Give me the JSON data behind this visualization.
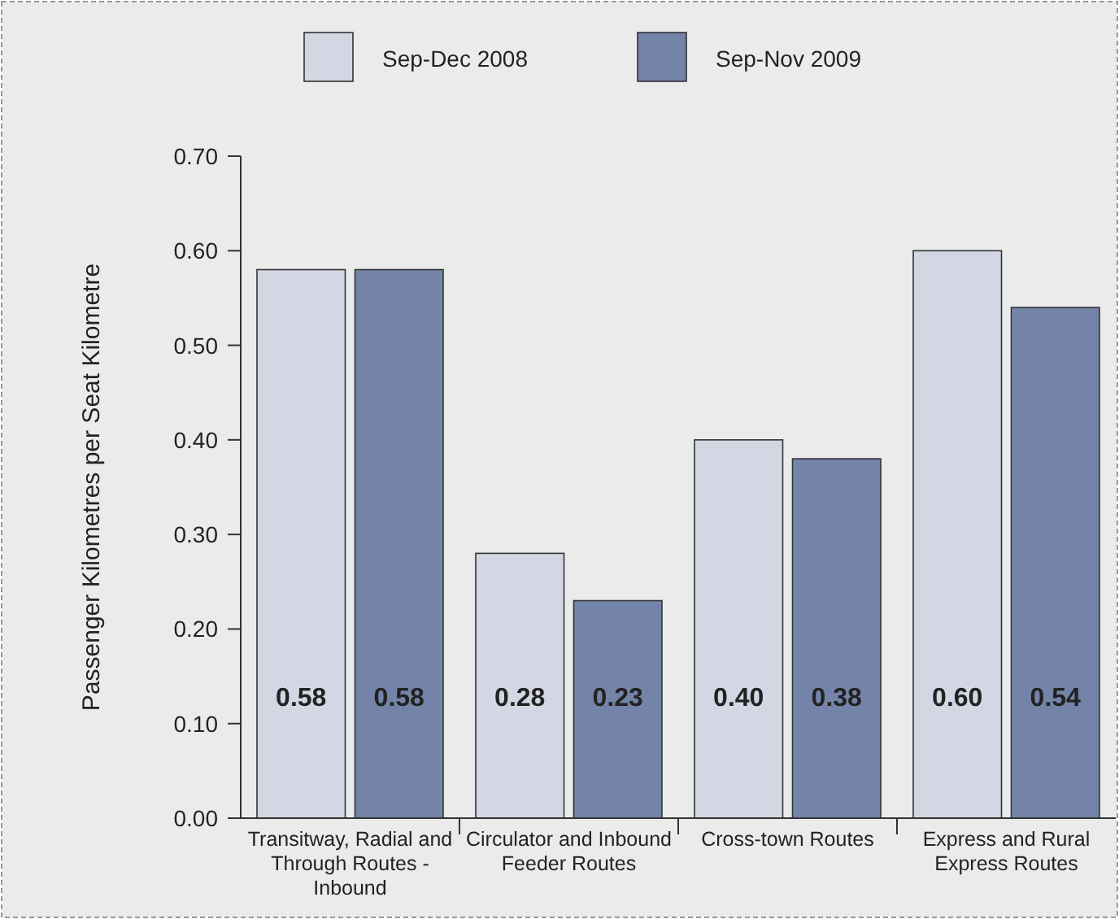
{
  "chart_data": {
    "type": "bar",
    "ylabel": "Passenger Kilometres per Seat Kilometre",
    "categories": [
      "Transitway, Radial and Through Routes - Inbound",
      "Circulator and Inbound Feeder Routes",
      "Cross-town Routes",
      "Express and Rural Express Routes"
    ],
    "series": [
      {
        "name": "Sep-Dec 2008",
        "color": "#d3d7e3",
        "values": [
          0.58,
          0.28,
          0.4,
          0.6
        ],
        "value_labels": [
          "0.58",
          "0.28",
          "0.40",
          "0.60"
        ]
      },
      {
        "name": "Sep-Nov 2009",
        "color": "#7484a8",
        "values": [
          0.58,
          0.23,
          0.38,
          0.54
        ],
        "value_labels": [
          "0.58",
          "0.23",
          "0.38",
          "0.54"
        ]
      }
    ],
    "ylim": [
      0,
      0.7
    ],
    "yticks": [
      {
        "value": 0,
        "label": "0.00"
      },
      {
        "value": 0.1,
        "label": "0.10"
      },
      {
        "value": 0.2,
        "label": "0.20"
      },
      {
        "value": 0.3,
        "label": "0.30"
      },
      {
        "value": 0.4,
        "label": "0.40"
      },
      {
        "value": 0.5,
        "label": "0.50"
      },
      {
        "value": 0.6,
        "label": "0.60"
      },
      {
        "value": 0.7,
        "label": "0.70"
      }
    ],
    "legend": "top",
    "grid": false
  }
}
